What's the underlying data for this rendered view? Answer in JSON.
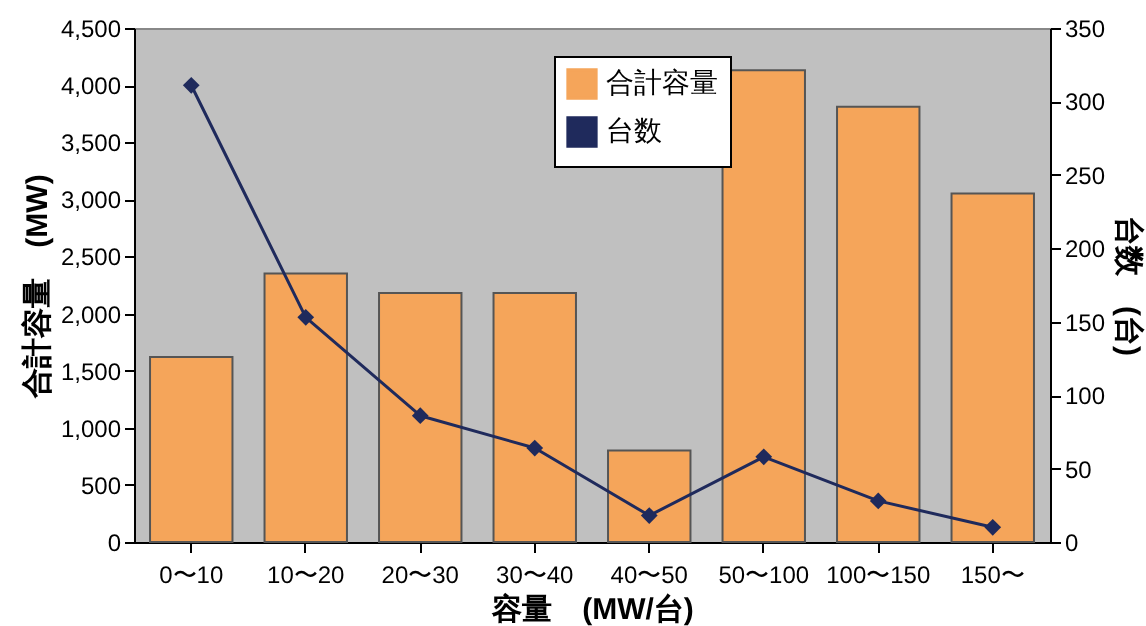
{
  "chart_data": {
    "type": "bar",
    "xlabel": "容量　(MW/台)",
    "ylabel": "合計容量　(MW)",
    "y2label": "台数　(台)",
    "categories": [
      "0〜10",
      "10〜20",
      "20〜30",
      "30〜40",
      "40〜50",
      "50〜100",
      "100〜150",
      "150〜"
    ],
    "series": [
      {
        "name": "合計容量",
        "color": "#f5a55a",
        "values": [
          1620,
          2350,
          2180,
          2180,
          800,
          4130,
          3810,
          3050
        ]
      },
      {
        "name": "台数",
        "type": "line",
        "axis": "y2",
        "color": "#1f2a5c",
        "values": [
          311,
          153,
          86,
          64,
          18,
          58,
          28,
          10
        ]
      }
    ],
    "ylim": [
      0,
      4500
    ],
    "yticks": [
      0,
      {
        "value": 500,
        "label": "500"
      },
      {
        "value": 1000,
        "label": "1,000"
      },
      {
        "value": 1500,
        "label": "1,500"
      },
      {
        "value": 2000,
        "label": "2,000"
      },
      {
        "value": 2500,
        "label": "2,500"
      },
      {
        "value": 3000,
        "label": "3,000"
      },
      {
        "value": 3500,
        "label": "3,500"
      },
      {
        "value": 4000,
        "label": "4,000"
      },
      {
        "value": 4500,
        "label": "4,500"
      }
    ],
    "y2lim": [
      0,
      350
    ],
    "y2ticks": [
      0,
      50,
      100,
      150,
      200,
      250,
      300,
      350
    ],
    "marker": "diamond",
    "legend": "top",
    "grid": false
  }
}
